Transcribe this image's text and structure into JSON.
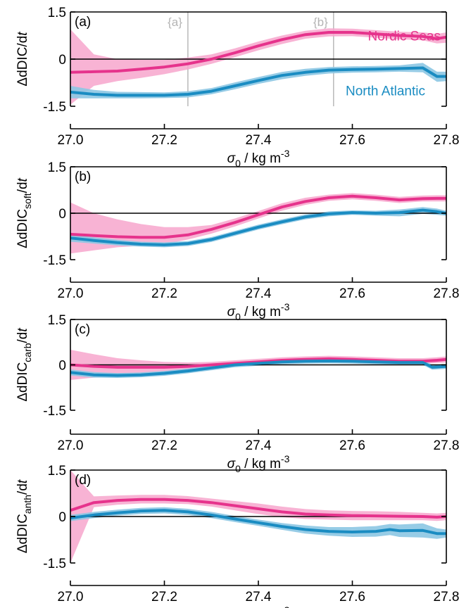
{
  "colors": {
    "nordic_line": "#e6338c",
    "nordic_band": "#f7a6cc",
    "atlantic_line": "#1a8cc2",
    "atlantic_band": "#8cc6e3",
    "marker_line": "#bdbdbd",
    "axis": "#000000"
  },
  "xlabel_symbol": "σ",
  "xlabel_sub": "0",
  "xlabel_units": " / kg m",
  "xlabel_exp": "-3",
  "series_labels": {
    "nordic": "Nordic Seas",
    "atlantic": "North Atlantic"
  },
  "markers": [
    {
      "label": "{a}",
      "x": 27.25
    },
    {
      "label": "{b}",
      "x": 27.56
    }
  ],
  "chart_data": [
    {
      "type": "line",
      "panel": "(a)",
      "ylabel_main": "ΔdDIC",
      "ylabel_sub": "",
      "ylabel_tail": "/d",
      "ylabel_t": "t",
      "xlim": [
        27.0,
        27.8
      ],
      "ylim": [
        -1.5,
        1.5
      ],
      "xticks": [
        "27.0",
        "27.2",
        "27.4",
        "27.6",
        "27.8"
      ],
      "yticks": [
        "1.5",
        "0",
        "-1.5"
      ],
      "yticks_values": [
        1.5,
        0,
        -1.5
      ],
      "series": [
        {
          "name": "Nordic Seas",
          "x": [
            27.0,
            27.05,
            27.1,
            27.15,
            27.2,
            27.25,
            27.3,
            27.35,
            27.4,
            27.45,
            27.5,
            27.55,
            27.6,
            27.65,
            27.7,
            27.75,
            27.78,
            27.8
          ],
          "y": [
            -0.42,
            -0.4,
            -0.38,
            -0.32,
            -0.25,
            -0.15,
            0.0,
            0.2,
            0.42,
            0.62,
            0.78,
            0.85,
            0.85,
            0.8,
            0.75,
            0.72,
            0.65,
            0.7
          ],
          "lower": [
            -1.45,
            -0.85,
            -0.7,
            -0.6,
            -0.48,
            -0.33,
            -0.15,
            0.06,
            0.28,
            0.48,
            0.65,
            0.72,
            0.73,
            0.68,
            0.63,
            0.6,
            0.5,
            0.52
          ],
          "upper": [
            0.95,
            0.15,
            0.0,
            -0.02,
            -0.02,
            0.05,
            0.15,
            0.34,
            0.56,
            0.75,
            0.9,
            0.98,
            0.97,
            0.92,
            0.87,
            0.85,
            0.8,
            0.85
          ]
        },
        {
          "name": "North Atlantic",
          "x": [
            27.0,
            27.05,
            27.1,
            27.15,
            27.2,
            27.25,
            27.3,
            27.35,
            27.4,
            27.45,
            27.5,
            27.55,
            27.6,
            27.65,
            27.7,
            27.75,
            27.78,
            27.8
          ],
          "y": [
            -1.05,
            -1.12,
            -1.15,
            -1.15,
            -1.15,
            -1.12,
            -1.02,
            -0.85,
            -0.68,
            -0.52,
            -0.42,
            -0.35,
            -0.33,
            -0.32,
            -0.3,
            -0.28,
            -0.55,
            -0.55
          ],
          "lower": [
            -1.25,
            -1.25,
            -1.25,
            -1.25,
            -1.24,
            -1.22,
            -1.12,
            -0.96,
            -0.79,
            -0.64,
            -0.53,
            -0.46,
            -0.43,
            -0.42,
            -0.4,
            -0.42,
            -0.72,
            -0.7
          ],
          "upper": [
            -0.85,
            -0.98,
            -1.04,
            -1.05,
            -1.06,
            -1.02,
            -0.92,
            -0.74,
            -0.57,
            -0.41,
            -0.31,
            -0.25,
            -0.23,
            -0.22,
            -0.2,
            -0.12,
            -0.4,
            -0.4
          ]
        }
      ]
    },
    {
      "type": "line",
      "panel": "(b)",
      "ylabel_main": "ΔdDIC",
      "ylabel_sub": "soft",
      "ylabel_tail": "/d",
      "ylabel_t": "t",
      "xlim": [
        27.0,
        27.8
      ],
      "ylim": [
        -1.5,
        1.5
      ],
      "xticks": [
        "27.0",
        "27.2",
        "27.4",
        "27.6",
        "27.8"
      ],
      "yticks": [
        "1.5",
        "0",
        "-1.5"
      ],
      "yticks_values": [
        1.5,
        0,
        -1.5
      ],
      "series": [
        {
          "name": "Nordic Seas",
          "x": [
            27.0,
            27.05,
            27.1,
            27.15,
            27.2,
            27.25,
            27.3,
            27.35,
            27.4,
            27.45,
            27.5,
            27.55,
            27.6,
            27.65,
            27.7,
            27.75,
            27.78,
            27.8
          ],
          "y": [
            -0.68,
            -0.72,
            -0.76,
            -0.78,
            -0.78,
            -0.7,
            -0.52,
            -0.3,
            -0.05,
            0.2,
            0.38,
            0.5,
            0.55,
            0.5,
            0.43,
            0.47,
            0.48,
            0.48
          ],
          "lower": [
            -1.3,
            -1.2,
            -1.1,
            -1.05,
            -1.0,
            -0.85,
            -0.66,
            -0.43,
            -0.17,
            0.08,
            0.27,
            0.4,
            0.45,
            0.4,
            0.33,
            0.38,
            0.38,
            0.38
          ],
          "upper": [
            0.35,
            0.0,
            -0.2,
            -0.35,
            -0.45,
            -0.45,
            -0.38,
            -0.17,
            0.07,
            0.32,
            0.5,
            0.6,
            0.65,
            0.6,
            0.53,
            0.57,
            0.58,
            0.58
          ]
        },
        {
          "name": "North Atlantic",
          "x": [
            27.0,
            27.05,
            27.1,
            27.15,
            27.2,
            27.25,
            27.3,
            27.35,
            27.4,
            27.45,
            27.5,
            27.55,
            27.6,
            27.65,
            27.7,
            27.75,
            27.78,
            27.8
          ],
          "y": [
            -0.8,
            -0.88,
            -0.95,
            -1.0,
            -1.02,
            -0.98,
            -0.85,
            -0.65,
            -0.45,
            -0.28,
            -0.12,
            -0.02,
            0.02,
            0.0,
            0.02,
            0.1,
            0.05,
            0.0
          ],
          "lower": [
            -0.92,
            -0.98,
            -1.04,
            -1.08,
            -1.1,
            -1.06,
            -0.93,
            -0.73,
            -0.53,
            -0.36,
            -0.2,
            -0.1,
            -0.05,
            -0.08,
            -0.1,
            -0.02,
            -0.05,
            -0.08
          ],
          "upper": [
            -0.68,
            -0.78,
            -0.86,
            -0.92,
            -0.94,
            -0.9,
            -0.77,
            -0.57,
            -0.37,
            -0.2,
            -0.04,
            0.06,
            0.09,
            0.08,
            0.12,
            0.2,
            0.15,
            0.08
          ]
        }
      ]
    },
    {
      "type": "line",
      "panel": "(c)",
      "ylabel_main": "ΔdDIC",
      "ylabel_sub": "carb",
      "ylabel_tail": "/d",
      "ylabel_t": "t",
      "xlim": [
        27.0,
        27.8
      ],
      "ylim": [
        -1.5,
        1.5
      ],
      "xticks": [
        "27.0",
        "27.2",
        "27.4",
        "27.6",
        "27.8"
      ],
      "yticks": [
        "1.5",
        "0",
        "-1.5"
      ],
      "yticks_values": [
        1.5,
        0,
        -1.5
      ],
      "series": [
        {
          "name": "Nordic Seas",
          "x": [
            27.0,
            27.05,
            27.1,
            27.15,
            27.2,
            27.25,
            27.3,
            27.35,
            27.4,
            27.45,
            27.5,
            27.55,
            27.6,
            27.65,
            27.7,
            27.75,
            27.78,
            27.8
          ],
          "y": [
            0.0,
            -0.05,
            -0.08,
            -0.08,
            -0.08,
            -0.05,
            0.0,
            0.05,
            0.1,
            0.15,
            0.18,
            0.2,
            0.18,
            0.15,
            0.12,
            0.12,
            0.15,
            0.18
          ],
          "lower": [
            -0.5,
            -0.42,
            -0.35,
            -0.3,
            -0.25,
            -0.17,
            -0.1,
            -0.04,
            0.02,
            0.07,
            0.1,
            0.12,
            0.1,
            0.07,
            0.04,
            0.04,
            0.06,
            0.08
          ],
          "upper": [
            0.5,
            0.35,
            0.22,
            0.15,
            0.1,
            0.08,
            0.1,
            0.15,
            0.2,
            0.25,
            0.28,
            0.3,
            0.28,
            0.25,
            0.22,
            0.22,
            0.25,
            0.28
          ]
        },
        {
          "name": "North Atlantic",
          "x": [
            27.0,
            27.05,
            27.1,
            27.15,
            27.2,
            27.25,
            27.3,
            27.35,
            27.4,
            27.45,
            27.5,
            27.55,
            27.6,
            27.65,
            27.7,
            27.75,
            27.77,
            27.8
          ],
          "y": [
            -0.25,
            -0.33,
            -0.35,
            -0.33,
            -0.28,
            -0.2,
            -0.1,
            0.0,
            0.05,
            0.1,
            0.12,
            0.13,
            0.12,
            0.1,
            0.08,
            0.08,
            -0.08,
            -0.05
          ],
          "lower": [
            -0.35,
            -0.42,
            -0.43,
            -0.41,
            -0.36,
            -0.28,
            -0.18,
            -0.08,
            -0.03,
            0.02,
            0.04,
            0.05,
            0.04,
            0.02,
            0.0,
            0.0,
            -0.16,
            -0.13
          ],
          "upper": [
            -0.15,
            -0.24,
            -0.27,
            -0.25,
            -0.2,
            -0.12,
            -0.02,
            0.08,
            0.13,
            0.18,
            0.2,
            0.21,
            0.2,
            0.18,
            0.16,
            0.16,
            0.0,
            0.03
          ]
        }
      ]
    },
    {
      "type": "line",
      "panel": "(d)",
      "ylabel_main": "ΔdDIC",
      "ylabel_sub": "anth",
      "ylabel_tail": "/d",
      "ylabel_t": "t",
      "xlim": [
        27.0,
        27.8
      ],
      "ylim": [
        -1.5,
        1.5
      ],
      "xticks": [
        "27.0",
        "27.2",
        "27.4",
        "27.6",
        "27.8"
      ],
      "yticks": [
        "1.5",
        "0",
        "-1.5"
      ],
      "yticks_values": [
        1.5,
        0,
        -1.5
      ],
      "series": [
        {
          "name": "Nordic Seas",
          "x": [
            27.0,
            27.05,
            27.1,
            27.15,
            27.2,
            27.25,
            27.3,
            27.35,
            27.4,
            27.45,
            27.5,
            27.55,
            27.6,
            27.65,
            27.7,
            27.75,
            27.78,
            27.8
          ],
          "y": [
            0.2,
            0.45,
            0.52,
            0.55,
            0.55,
            0.52,
            0.45,
            0.35,
            0.25,
            0.15,
            0.08,
            0.05,
            0.03,
            0.02,
            0.01,
            0.0,
            -0.02,
            0.0
          ],
          "lower": [
            -1.5,
            0.3,
            0.38,
            0.42,
            0.42,
            0.4,
            0.32,
            0.2,
            0.08,
            -0.02,
            -0.08,
            -0.1,
            -0.12,
            -0.12,
            -0.12,
            -0.12,
            -0.14,
            -0.12
          ],
          "upper": [
            1.5,
            0.65,
            0.68,
            0.7,
            0.7,
            0.66,
            0.58,
            0.5,
            0.42,
            0.32,
            0.24,
            0.2,
            0.18,
            0.17,
            0.15,
            0.12,
            0.1,
            0.12
          ]
        },
        {
          "name": "North Atlantic",
          "x": [
            27.0,
            27.05,
            27.1,
            27.15,
            27.2,
            27.25,
            27.3,
            27.35,
            27.4,
            27.45,
            27.5,
            27.55,
            27.6,
            27.65,
            27.68,
            27.7,
            27.75,
            27.78,
            27.8
          ],
          "y": [
            -0.05,
            0.05,
            0.12,
            0.18,
            0.2,
            0.15,
            0.05,
            -0.08,
            -0.2,
            -0.32,
            -0.42,
            -0.48,
            -0.5,
            -0.48,
            -0.42,
            -0.46,
            -0.45,
            -0.55,
            -0.55
          ],
          "lower": [
            -0.15,
            -0.05,
            0.03,
            0.08,
            0.1,
            0.05,
            -0.05,
            -0.18,
            -0.3,
            -0.43,
            -0.55,
            -0.62,
            -0.66,
            -0.65,
            -0.6,
            -0.66,
            -0.68,
            -0.72,
            -0.68
          ],
          "upper": [
            0.05,
            0.15,
            0.22,
            0.28,
            0.3,
            0.25,
            0.15,
            0.02,
            -0.1,
            -0.21,
            -0.29,
            -0.34,
            -0.34,
            -0.31,
            -0.24,
            -0.26,
            -0.22,
            -0.38,
            -0.42
          ]
        }
      ]
    }
  ]
}
